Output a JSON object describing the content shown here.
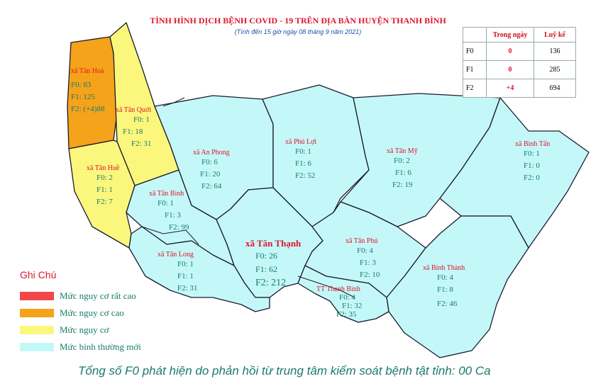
{
  "title": "TÌNH HÌNH DỊCH BỆNH COVID - 19 TRÊN ĐỊA BÀN HUYỆN THANH BÌNH",
  "subtitle": "(Tính đến 15 giờ ngày 08 tháng 9 năm 2021)",
  "stats": {
    "headers": [
      "Trong ngày",
      "Luỹ kế"
    ],
    "rows": [
      {
        "label": "F0",
        "today": "0",
        "cumulative": "136"
      },
      {
        "label": "F1",
        "today": "0",
        "cumulative": "285"
      },
      {
        "label": "F2",
        "today": "+4",
        "cumulative": "694"
      }
    ]
  },
  "colors": {
    "very_high": "#f04848",
    "high": "#f5a31a",
    "medium": "#fbf77c",
    "normal": "#c4f8f8",
    "border": "#1a1a2e",
    "label_red": "#e0162b",
    "label_teal": "#1a7a6a"
  },
  "communes": [
    {
      "name": "xã Tân Hoà",
      "f0": "F0: 83",
      "f1": "F1: 125",
      "f2": "F2: (+4)88",
      "risk": "high"
    },
    {
      "name": "xã Tân Quới",
      "f0": "F0: 1",
      "f1": "F1: 18",
      "f2": "F2: 31",
      "risk": "medium"
    },
    {
      "name": "xã Tân Huề",
      "f0": "F0: 2",
      "f1": "F1: 1",
      "f2": "F2: 7",
      "risk": "medium"
    },
    {
      "name": "xã An Phong",
      "f0": "F0: 6",
      "f1": "F1: 20",
      "f2": "F2: 64",
      "risk": "normal"
    },
    {
      "name": "xã Phú Lợi",
      "f0": "F0: 1",
      "f1": "F1: 6",
      "f2": "F2: 52",
      "risk": "normal"
    },
    {
      "name": "xã Tân Mỹ",
      "f0": "F0: 2",
      "f1": "F1: 6",
      "f2": "F2: 19",
      "risk": "normal"
    },
    {
      "name": "xã Bình Tấn",
      "f0": "F0: 1",
      "f1": "F1: 0",
      "f2": "F2: 0",
      "risk": "normal"
    },
    {
      "name": "xã Tân Bình",
      "f0": "F0: 1",
      "f1": "F1: 3",
      "f2": "F2: 99",
      "risk": "normal"
    },
    {
      "name": "xã Tân Thạnh",
      "f0": "F0: 26",
      "f1": "F1: 62",
      "f2": "F2: 212",
      "risk": "normal"
    },
    {
      "name": "xã Tân Phú",
      "f0": "F0: 4",
      "f1": "F1: 3",
      "f2": "F2: 10",
      "risk": "normal"
    },
    {
      "name": "xã Tân Long",
      "f0": "F0: 1",
      "f1": "F1: 1",
      "f2": "F2: 31",
      "risk": "normal"
    },
    {
      "name": "xã Bình Thành",
      "f0": "F0: 4",
      "f1": "F1: 8",
      "f2": "F2: 46",
      "risk": "normal"
    },
    {
      "name": "TT Thanh Bình",
      "f0": "F0: 4",
      "f1": "F1: 32",
      "f2": "F2: 35",
      "risk": "normal"
    }
  ],
  "legend": {
    "title": "Ghi Chú",
    "items": [
      {
        "label": "Mức  nguy cơ rất cao",
        "color": "#f04848"
      },
      {
        "label": "Mức  nguy cơ cao",
        "color": "#f5a31a"
      },
      {
        "label": "Mức  nguy cơ",
        "color": "#fbf77c"
      },
      {
        "label": "Mức  bình thường mới",
        "color": "#c4f8f8"
      }
    ]
  },
  "footer": "Tổng số F0 phát hiện do phản hồi từ trung tâm kiểm soát bệnh tật tỉnh: 00 Ca"
}
